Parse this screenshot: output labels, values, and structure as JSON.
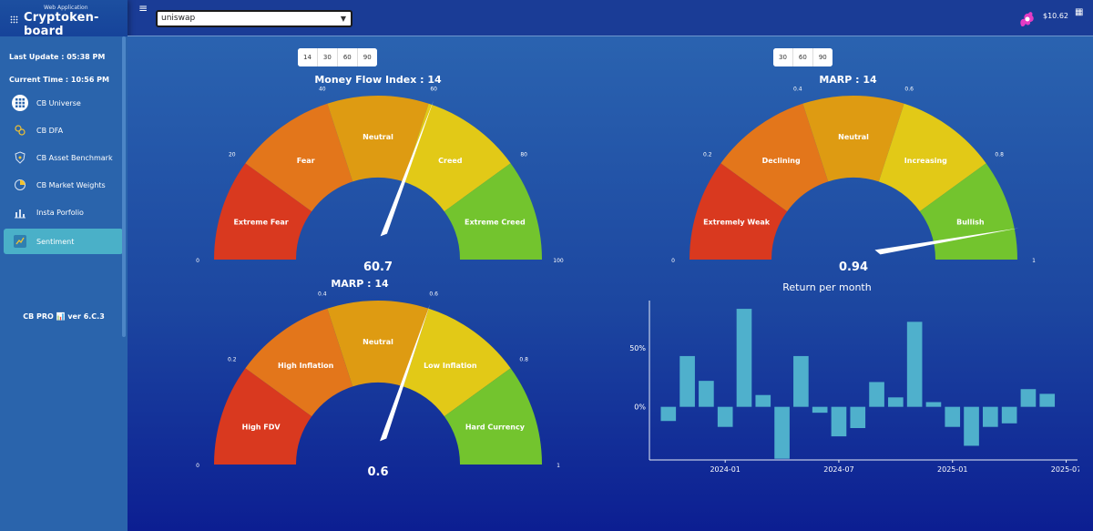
{
  "sidebar": {
    "brand_sub": "Web Application",
    "brand_name": "Cryptoken-board",
    "last_update": "Last Update : 05:38 PM",
    "current_time": "Current Time : 10:56 PM",
    "items": [
      {
        "label": "CB Universe",
        "icon": "grid-icon"
      },
      {
        "label": "CB DFA",
        "icon": "coins-icon"
      },
      {
        "label": "CB Asset Benchmark",
        "icon": "shield-icon"
      },
      {
        "label": "CB Market Weights",
        "icon": "pie-icon"
      },
      {
        "label": "Insta Porfolio",
        "icon": "chart-icon"
      },
      {
        "label": "Sentiment",
        "icon": "sentiment-icon",
        "active": true
      }
    ],
    "version": "CB PRO 📊 ver 6.C.3"
  },
  "topbar": {
    "menu_icon": "≡",
    "selected_token": "uniswap",
    "balance": "$10.62"
  },
  "gauges": [
    {
      "title": "Money Flow Index : 14",
      "value_text": "60.7",
      "value_fraction": 0.607,
      "periods": [
        "14",
        "30",
        "60",
        "90"
      ],
      "ticks": [
        "0",
        "20",
        "40",
        "60",
        "80",
        "100"
      ],
      "bands": [
        {
          "label": "Extreme Fear",
          "color": "#d9391f"
        },
        {
          "label": "Fear",
          "color": "#e3761b"
        },
        {
          "label": "Neutral",
          "color": "#de9b12"
        },
        {
          "label": "Creed",
          "color": "#e2c917"
        },
        {
          "label": "Extreme Creed",
          "color": "#73c42e"
        }
      ]
    },
    {
      "title": "MARP : 14",
      "value_text": "0.94",
      "value_fraction": 0.94,
      "periods": [
        "30",
        "60",
        "90"
      ],
      "ticks": [
        "0",
        "0.2",
        "0.4",
        "0.6",
        "0.8",
        "1"
      ],
      "bands": [
        {
          "label": "Extremely Weak",
          "color": "#d9391f"
        },
        {
          "label": "Declining",
          "color": "#e3761b"
        },
        {
          "label": "Neutral",
          "color": "#de9b12"
        },
        {
          "label": "Increasing",
          "color": "#e2c917"
        },
        {
          "label": "Bullish",
          "color": "#73c42e"
        }
      ]
    },
    {
      "title": "MARP : 14",
      "value_text": "0.6",
      "value_fraction": 0.6,
      "periods": [],
      "ticks": [
        "0",
        "0.2",
        "0.4",
        "0.6",
        "0.8",
        "1"
      ],
      "bands": [
        {
          "label": "High FDV",
          "color": "#d9391f"
        },
        {
          "label": "High Inflation",
          "color": "#e3761b"
        },
        {
          "label": "Neutral",
          "color": "#de9b12"
        },
        {
          "label": "Low Inflation",
          "color": "#e2c917"
        },
        {
          "label": "Hard Currency",
          "color": "#73c42e"
        }
      ]
    }
  ],
  "chart_data": {
    "type": "bar",
    "title": "Return per month",
    "x_ticks": [
      "2024-01",
      "2024-07",
      "2025-01",
      "2025-07"
    ],
    "y_ticks": [
      "0%",
      "50%"
    ],
    "ylim": [
      -45,
      90
    ],
    "categories": [
      "2023-10",
      "2023-11",
      "2023-12",
      "2024-01",
      "2024-02",
      "2024-03",
      "2024-04",
      "2024-05",
      "2024-06",
      "2024-07",
      "2024-08",
      "2024-09",
      "2024-10",
      "2024-11",
      "2024-12",
      "2025-01",
      "2025-02",
      "2025-03",
      "2025-04",
      "2025-05",
      "2025-06",
      "2025-07"
    ],
    "values": [
      -12,
      43,
      22,
      -17,
      83,
      10,
      -44,
      43,
      -5,
      -25,
      -18,
      21,
      8,
      72,
      4,
      -17,
      -33,
      -17,
      -14,
      15,
      11,
      0
    ],
    "color": "#4fb0cc",
    "grid": false
  }
}
